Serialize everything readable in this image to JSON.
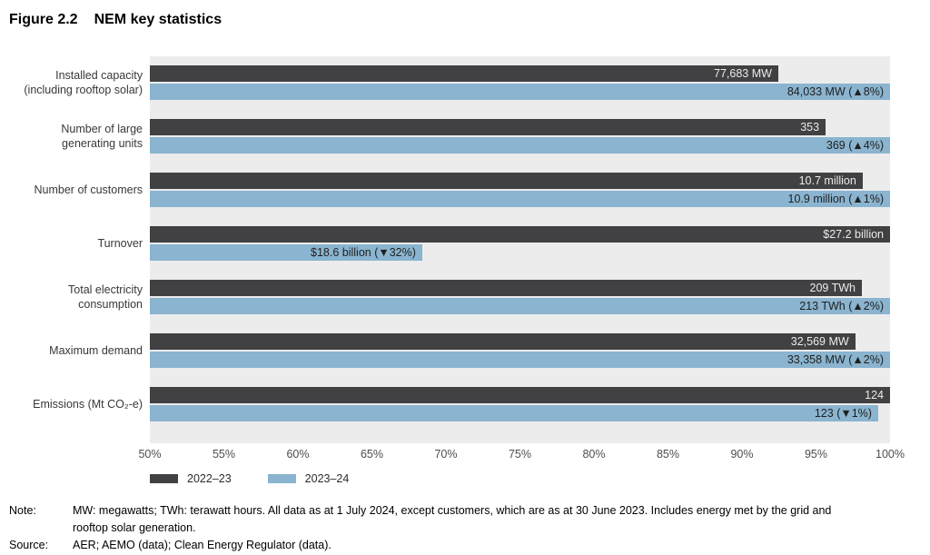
{
  "title": {
    "figure_label": "Figure 2.2",
    "text": "NEM key statistics"
  },
  "chart_data": {
    "type": "bar",
    "orientation": "horizontal",
    "title": "Figure 2.2 NEM key statistics",
    "x_axis": {
      "min": 50,
      "max": 100,
      "unit": "%",
      "ticks": [
        "50%",
        "55%",
        "60%",
        "65%",
        "70%",
        "75%",
        "80%",
        "85%",
        "90%",
        "95%",
        "100%"
      ],
      "grid": false,
      "scale_note": "each bar drawn as its value relative to the larger value of the pair"
    },
    "legend": [
      {
        "name": "2022–23",
        "color": "#414042"
      },
      {
        "name": "2023–24",
        "color": "#8ab4cf"
      }
    ],
    "plot_background": "#ececed",
    "rows": [
      {
        "metric": "Installed capacity (including rooftop solar)",
        "label_lines": [
          "Installed capacity",
          "(including rooftop solar)"
        ],
        "y2022_23": {
          "display": "77,683 MW",
          "value": 77683,
          "unit": "MW",
          "bar_pct": 84.9
        },
        "y2023_24": {
          "display": "84,033 MW (▲8%)",
          "value": 84033,
          "unit": "MW",
          "change": "▲8%",
          "bar_pct": 100
        }
      },
      {
        "metric": "Number of large generating units",
        "label_lines": [
          "Number of large",
          "generating units"
        ],
        "y2022_23": {
          "display": "353",
          "value": 353,
          "unit": "units",
          "bar_pct": 91.3
        },
        "y2023_24": {
          "display": "369 (▲4%)",
          "value": 369,
          "unit": "units",
          "change": "▲4%",
          "bar_pct": 100
        }
      },
      {
        "metric": "Number of customers",
        "label_lines": [
          "Number of customers"
        ],
        "y2022_23": {
          "display": "10.7 million",
          "value": 10.7,
          "unit": "million",
          "bar_pct": 96.3
        },
        "y2023_24": {
          "display": "10.9 million (▲1%)",
          "value": 10.9,
          "unit": "million",
          "change": "▲1%",
          "bar_pct": 100
        }
      },
      {
        "metric": "Turnover",
        "label_lines": [
          "Turnover"
        ],
        "y2022_23": {
          "display": "$27.2 billion",
          "value": 27.2,
          "unit": "$ billion",
          "bar_pct": 100
        },
        "y2023_24": {
          "display": "$18.6 billion (▼32%)",
          "value": 18.6,
          "unit": "$ billion",
          "change": "▼32%",
          "bar_pct": 36.8
        }
      },
      {
        "metric": "Total electricity consumption",
        "label_lines": [
          "Total electricity",
          "consumption"
        ],
        "y2022_23": {
          "display": "209 TWh",
          "value": 209,
          "unit": "TWh",
          "bar_pct": 96.2
        },
        "y2023_24": {
          "display": "213 TWh (▲2%)",
          "value": 213,
          "unit": "TWh",
          "change": "▲2%",
          "bar_pct": 100
        }
      },
      {
        "metric": "Maximum demand",
        "label_lines": [
          "Maximum demand"
        ],
        "y2022_23": {
          "display": "32,569 MW",
          "value": 32569,
          "unit": "MW",
          "bar_pct": 95.3
        },
        "y2023_24": {
          "display": "33,358 MW (▲2%)",
          "value": 33358,
          "unit": "MW",
          "change": "▲2%",
          "bar_pct": 100
        }
      },
      {
        "metric": "Emissions (Mt CO₂-e)",
        "label_lines": [
          "Emissions (Mt CO₂-e)"
        ],
        "y2022_23": {
          "display": "124",
          "value": 124,
          "unit": "Mt CO₂-e",
          "bar_pct": 100
        },
        "y2023_24": {
          "display": "123 (▼1%)",
          "value": 123,
          "unit": "Mt CO₂-e",
          "change": "▼1%",
          "bar_pct": 98.4
        }
      }
    ]
  },
  "note": {
    "label": "Note:",
    "text": "MW: megawatts; TWh: terawatt hours. All data as at 1 July 2024, except customers, which are as at 30 June 2023. Includes energy met by the grid and rooftop solar generation."
  },
  "source": {
    "label": "Source:",
    "text": "AER; AEMO (data); Clean Energy Regulator (data)."
  }
}
